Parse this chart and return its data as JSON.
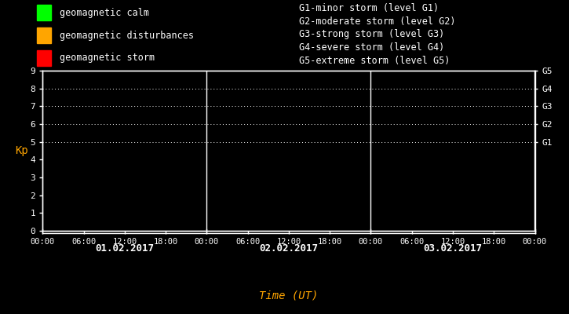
{
  "title": "Time (UT)",
  "ylabel": "Kp",
  "bg_color": "#000000",
  "plot_bg_color": "#000000",
  "text_color": "#ffffff",
  "axis_color": "#ffffff",
  "title_color": "#ffa500",
  "ylabel_color": "#ffa500",
  "days": [
    "01.02.2017",
    "02.02.2017",
    "03.02.2017"
  ],
  "legend_items": [
    {
      "label": "geomagnetic calm",
      "color": "#00ff00"
    },
    {
      "label": "geomagnetic disturbances",
      "color": "#ffa500"
    },
    {
      "label": "geomagnetic storm",
      "color": "#ff0000"
    }
  ],
  "storm_labels": [
    "G1-minor storm (level G1)",
    "G2-moderate storm (level G2)",
    "G3-strong storm (level G3)",
    "G4-severe storm (level G4)",
    "G5-extreme storm (level G5)"
  ],
  "g_levels": [
    {
      "label": "G5",
      "y": 9
    },
    {
      "label": "G4",
      "y": 8
    },
    {
      "label": "G3",
      "y": 7
    },
    {
      "label": "G2",
      "y": 6
    },
    {
      "label": "G1",
      "y": 5
    }
  ],
  "yticks": [
    0,
    1,
    2,
    3,
    4,
    5,
    6,
    7,
    8,
    9
  ],
  "n_days": 3,
  "hours_per_day": 24,
  "divider_color": "#ffffff",
  "dotted_color": "#ffffff",
  "dot_y_levels": [
    5,
    6,
    7,
    8,
    9
  ],
  "date_label_color": "#ffffff",
  "monospace_font": "monospace",
  "legend_fontsize": 8.5,
  "tick_fontsize": 7.5,
  "ytick_fontsize": 8,
  "date_fontsize": 9,
  "title_fontsize": 10,
  "ylabel_fontsize": 10,
  "glabel_fontsize": 8
}
